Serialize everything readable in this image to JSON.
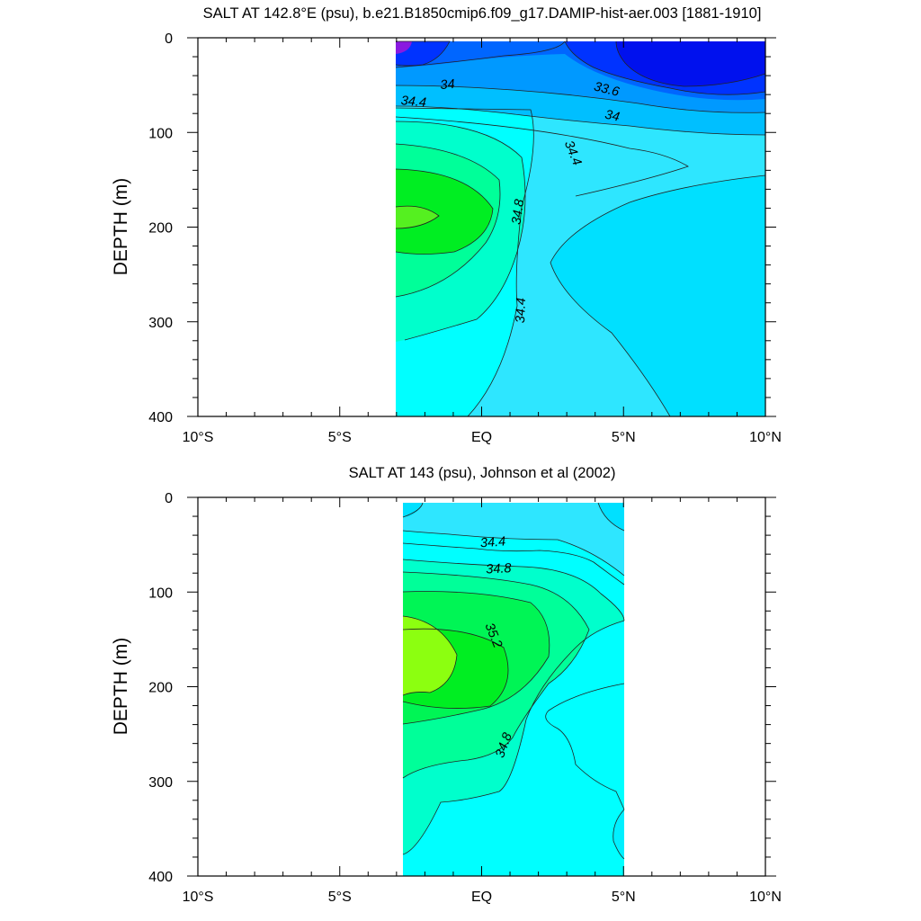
{
  "chart_data": [
    {
      "type": "contour",
      "title": "SALT AT 142.8°E (psu), b.e21.B1850cmip6.f09_g17.DAMIP-hist-aer.003 [1881-1910]",
      "ylabel": "DEPTH (m)",
      "xlim": [
        -10,
        10
      ],
      "ylim": [
        400,
        0
      ],
      "x_ticks": [
        {
          "value": -10,
          "label": "10°S"
        },
        {
          "value": -5,
          "label": "5°S"
        },
        {
          "value": 0,
          "label": "EQ"
        },
        {
          "value": 5,
          "label": "5°N"
        },
        {
          "value": 10,
          "label": "10°N"
        }
      ],
      "y_ticks": [
        {
          "value": 0,
          "label": "0"
        },
        {
          "value": 100,
          "label": "100"
        },
        {
          "value": 200,
          "label": "200"
        },
        {
          "value": 300,
          "label": "300"
        },
        {
          "value": 400,
          "label": "400"
        }
      ],
      "data_extent": {
        "x": [
          -3.0,
          10
        ],
        "y": [
          5,
          400
        ]
      },
      "contour_labels": [
        {
          "text": "34",
          "x": -1.2,
          "y": 50,
          "rotate": -5
        },
        {
          "text": "34.4",
          "x": -2.4,
          "y": 68,
          "rotate": 5
        },
        {
          "text": "33.6",
          "x": 4.4,
          "y": 55,
          "rotate": 14
        },
        {
          "text": "34",
          "x": 4.6,
          "y": 83,
          "rotate": 12
        },
        {
          "text": "34.4",
          "x": 3.2,
          "y": 122,
          "rotate": 68
        },
        {
          "text": "34.8",
          "x": 1.3,
          "y": 184,
          "rotate": -82
        },
        {
          "text": "34.4",
          "x": 1.4,
          "y": 288,
          "rotate": -88
        }
      ]
    },
    {
      "type": "contour",
      "title": "SALT AT 143 (psu), Johnson et al (2002)",
      "ylabel": "DEPTH (m)",
      "xlim": [
        -10,
        10
      ],
      "ylim": [
        400,
        0
      ],
      "x_ticks": [
        {
          "value": -10,
          "label": "10°S"
        },
        {
          "value": -5,
          "label": "5°S"
        },
        {
          "value": 0,
          "label": "EQ"
        },
        {
          "value": 5,
          "label": "5°N"
        },
        {
          "value": 10,
          "label": "10°N"
        }
      ],
      "y_ticks": [
        {
          "value": 0,
          "label": "0"
        },
        {
          "value": 100,
          "label": "100"
        },
        {
          "value": 200,
          "label": "200"
        },
        {
          "value": 300,
          "label": "300"
        },
        {
          "value": 400,
          "label": "400"
        }
      ],
      "data_extent": {
        "x": [
          -2.8,
          5
        ],
        "y": [
          5,
          400
        ]
      },
      "contour_labels": [
        {
          "text": "34.4",
          "x": 0.4,
          "y": 48,
          "rotate": -4
        },
        {
          "text": "34.8",
          "x": 0.6,
          "y": 76,
          "rotate": -3
        },
        {
          "text": "35.2",
          "x": 0.4,
          "y": 146,
          "rotate": 68
        },
        {
          "text": "34.8",
          "x": 0.8,
          "y": 262,
          "rotate": -70
        }
      ]
    }
  ],
  "colors": {
    "magenta": "#8a1ae0",
    "deep_blue": "#0011ee",
    "blue": "#0033ff",
    "mid_blue": "#0066ff",
    "azure": "#0099ff",
    "sky": "#00bfff",
    "light_cyan": "#00e0ff",
    "cyan": "#2ee6ff",
    "aqua": "#00ffff",
    "aquamarine": "#00ffcc",
    "seafoam": "#00ff99",
    "spring": "#00f555",
    "green": "#00ee22",
    "lime": "#8cff10"
  }
}
